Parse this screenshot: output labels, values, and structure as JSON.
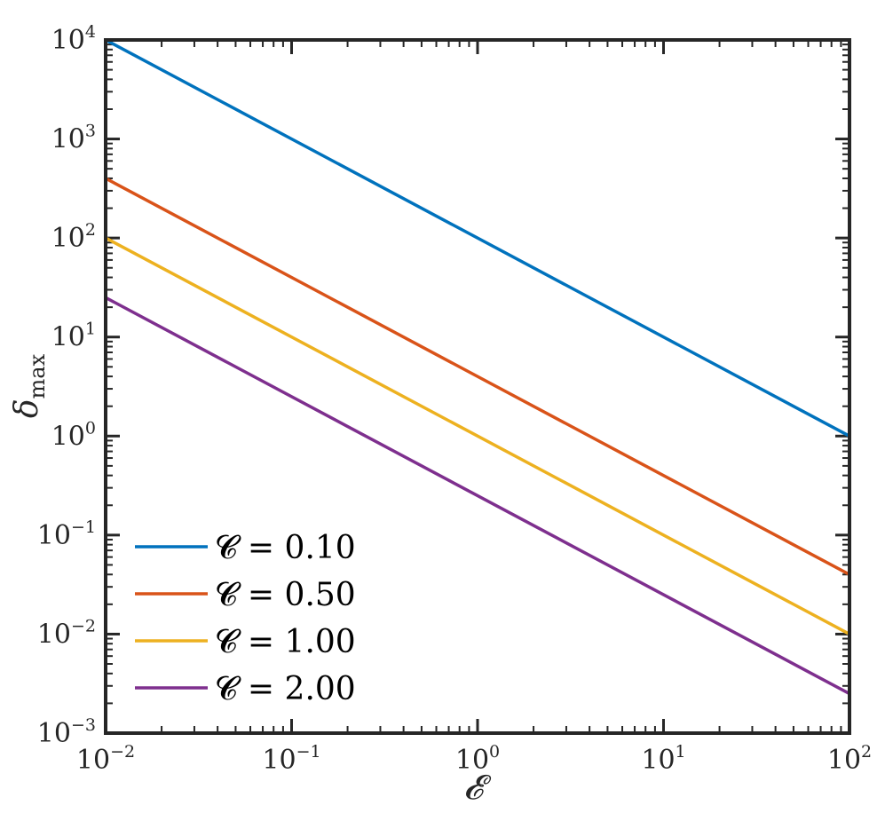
{
  "chart_data": {
    "type": "line",
    "xscale": "log",
    "yscale": "log",
    "xlim": [
      0.01,
      100
    ],
    "ylim": [
      0.001,
      10000
    ],
    "x_ticks": [
      {
        "base": "10",
        "exp": "−2"
      },
      {
        "base": "10",
        "exp": "−1"
      },
      {
        "base": "10",
        "exp": "0"
      },
      {
        "base": "10",
        "exp": "1"
      },
      {
        "base": "10",
        "exp": "2"
      }
    ],
    "y_ticks": [
      {
        "base": "10",
        "exp": "−3"
      },
      {
        "base": "10",
        "exp": "−2"
      },
      {
        "base": "10",
        "exp": "−1"
      },
      {
        "base": "10",
        "exp": "0"
      },
      {
        "base": "10",
        "exp": "1"
      },
      {
        "base": "10",
        "exp": "2"
      },
      {
        "base": "10",
        "exp": "3"
      },
      {
        "base": "10",
        "exp": "4"
      }
    ],
    "xlabel": "𝓔",
    "ylabel": {
      "main": "δ",
      "sub": "max"
    },
    "grid": false,
    "legend_position": "bottom-left",
    "series": [
      {
        "name": "𝓒 = 0.10",
        "color": "#0072BD",
        "x": [
          0.01,
          100
        ],
        "y": [
          10000,
          1
        ]
      },
      {
        "name": "𝓒 = 0.50",
        "color": "#D95319",
        "x": [
          0.01,
          100
        ],
        "y": [
          400,
          0.04
        ]
      },
      {
        "name": "𝓒 = 1.00",
        "color": "#EDB120",
        "x": [
          0.01,
          100
        ],
        "y": [
          100,
          0.01
        ]
      },
      {
        "name": "𝓒 = 2.00",
        "color": "#7E2F8E",
        "x": [
          0.01,
          100
        ],
        "y": [
          25,
          0.0025
        ]
      }
    ]
  }
}
